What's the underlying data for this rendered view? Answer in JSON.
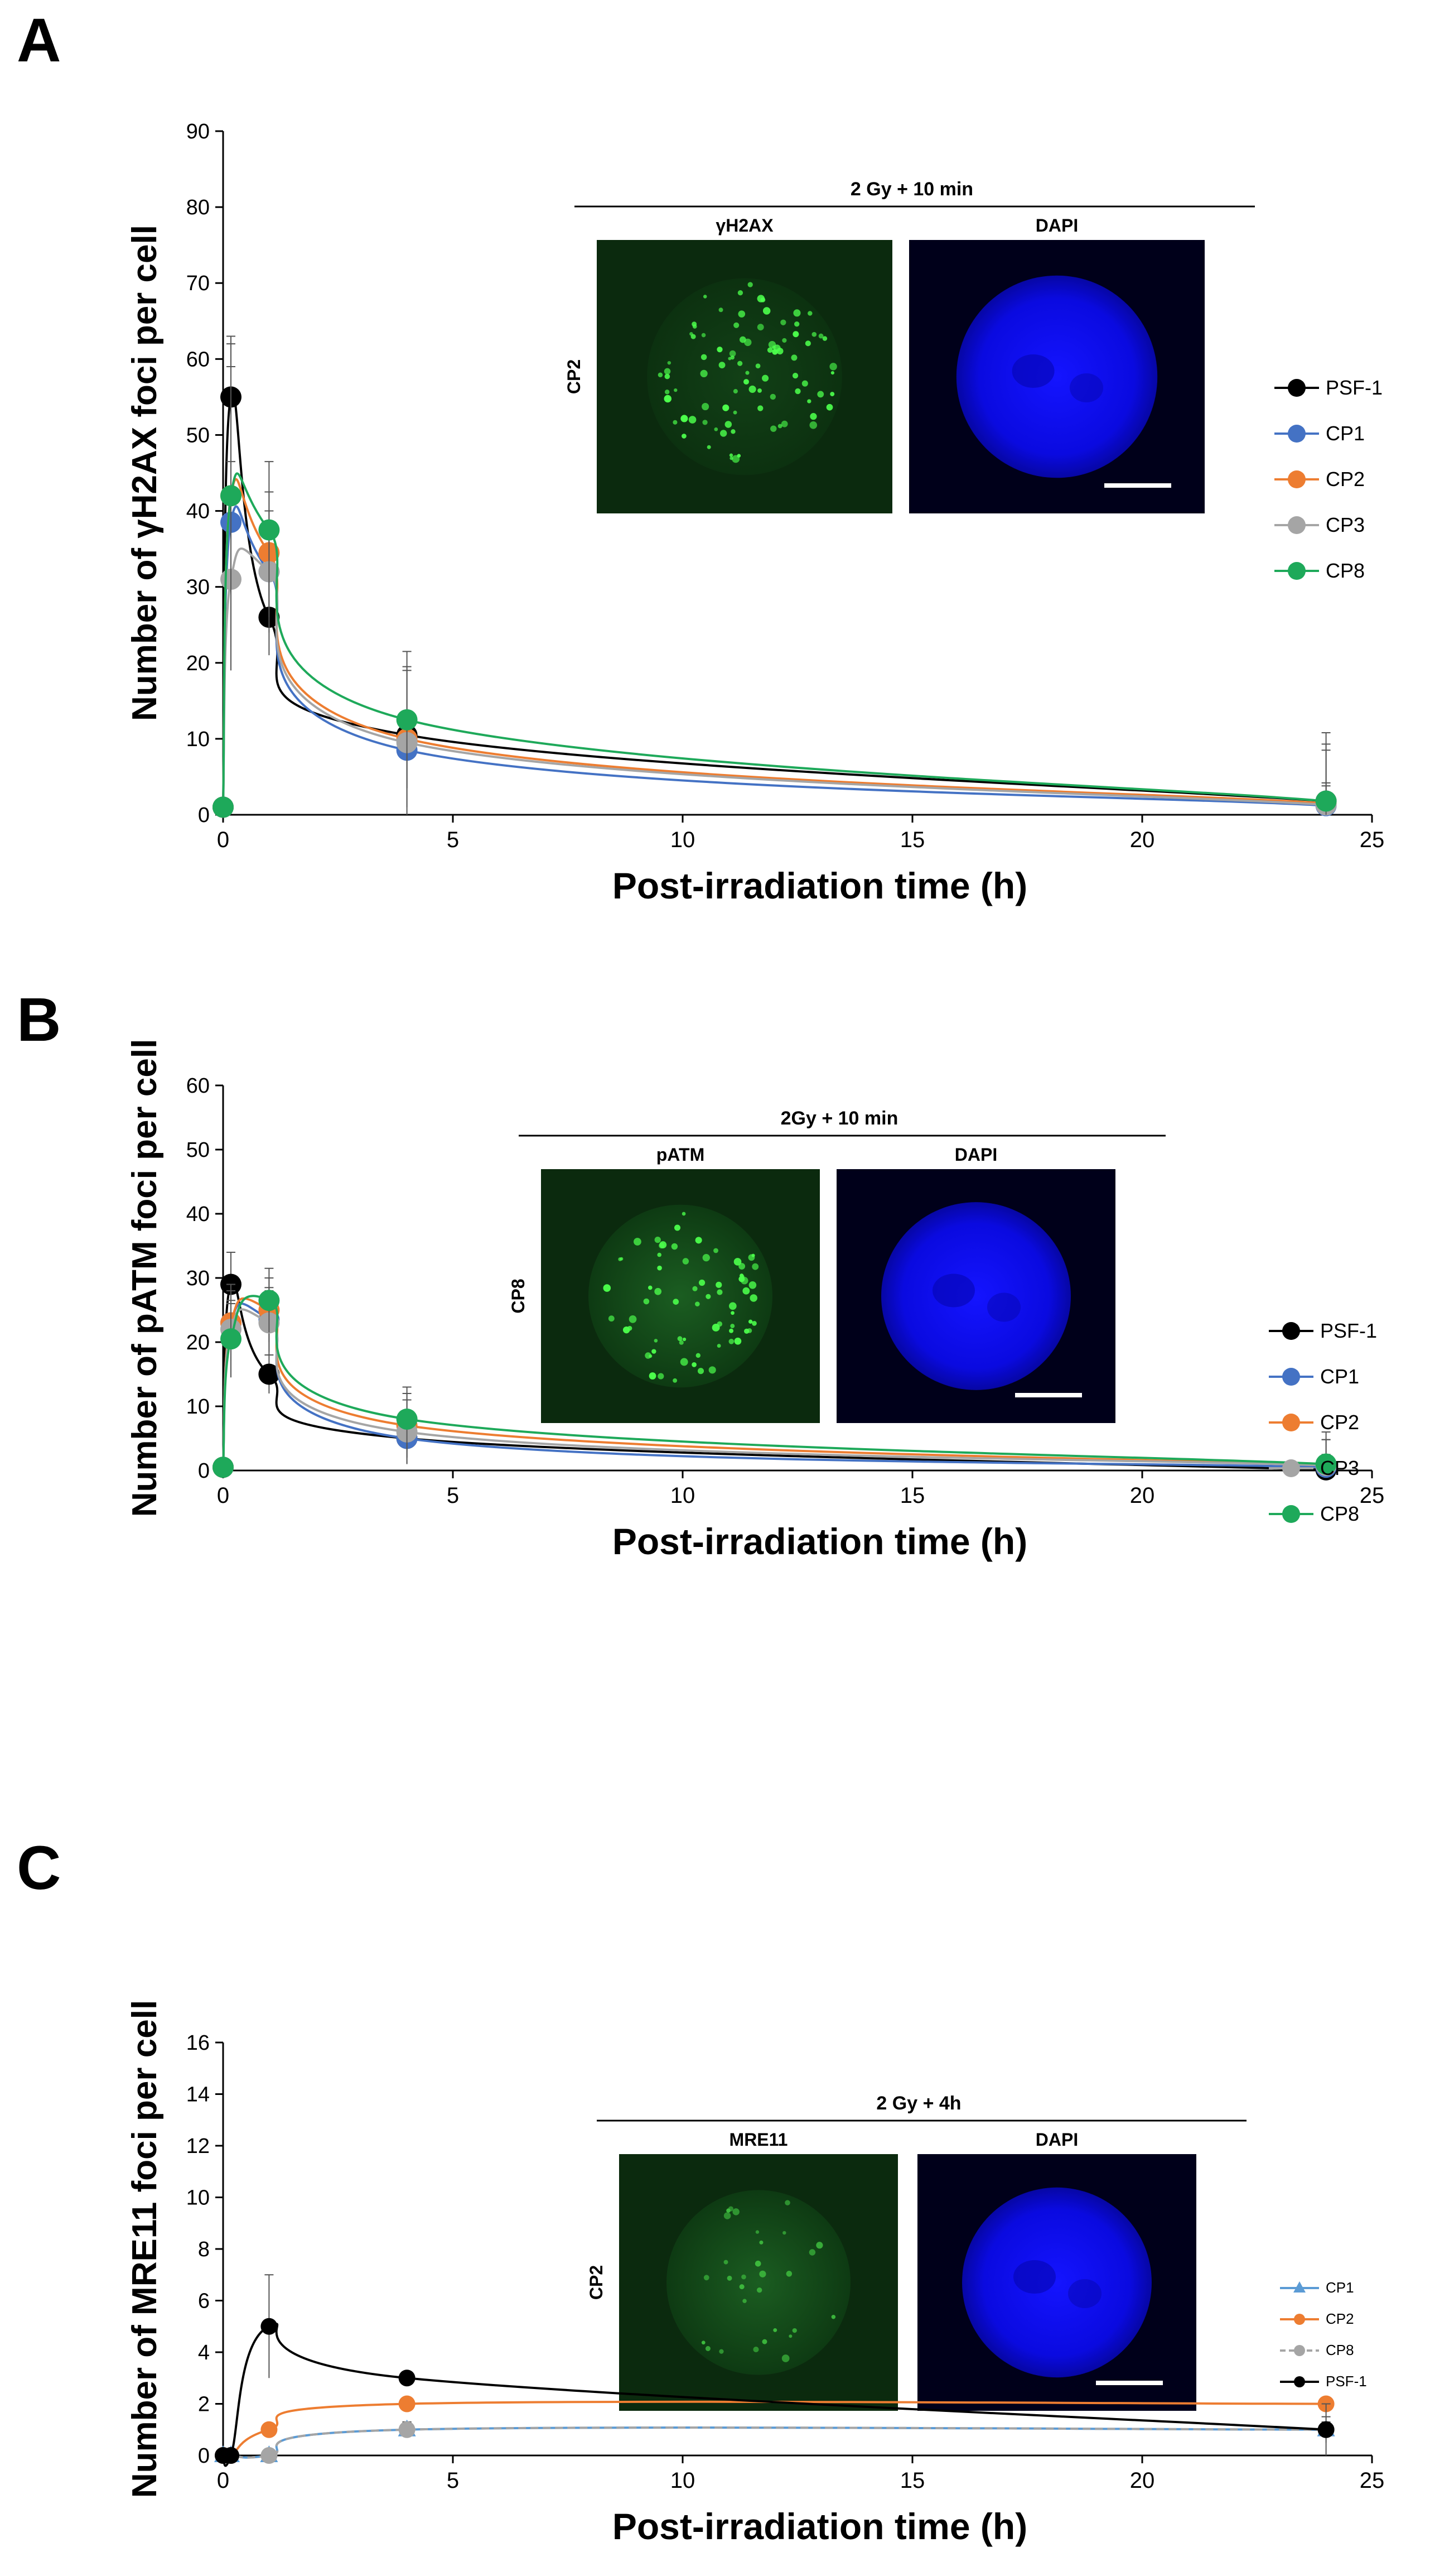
{
  "chart_data": [
    {
      "type": "line",
      "panel_label": "A",
      "xlabel": "Post-irradiation time (h)",
      "ylabel": "Number of γH2AX foci per cell",
      "xlim": [
        0,
        25
      ],
      "ylim": [
        0,
        90
      ],
      "xticks": [
        "0",
        "5",
        "10",
        "15",
        "20",
        "25"
      ],
      "yticks": [
        "0",
        "10",
        "20",
        "30",
        "40",
        "50",
        "60",
        "70",
        "80",
        "90"
      ],
      "legend_position": "right",
      "inset": {
        "condition": "2 Gy + 10 min",
        "channel_labels": [
          "γH2AX",
          "DAPI"
        ],
        "sample_label": "CP2"
      },
      "series": [
        {
          "name": "PSF-1",
          "color": "#000000",
          "x": [
            0,
            0.17,
            1,
            4,
            24
          ],
          "y": [
            1,
            55,
            26,
            10.5,
            1.8
          ],
          "err": [
            0,
            8,
            5,
            3,
            2
          ]
        },
        {
          "name": "CP1",
          "color": "#4472c4",
          "x": [
            0,
            0.17,
            1,
            4,
            24
          ],
          "y": [
            1,
            38.5,
            32,
            8.5,
            1.2
          ],
          "err": [
            0,
            8,
            6,
            5,
            3
          ]
        },
        {
          "name": "CP2",
          "color": "#ed7d31",
          "x": [
            0,
            0.17,
            1,
            4,
            24
          ],
          "y": [
            1,
            42,
            34.5,
            10,
            1.5
          ],
          "err": [
            0,
            20,
            8,
            9,
            7
          ]
        },
        {
          "name": "CP3",
          "color": "#a5a5a5",
          "x": [
            0,
            0.17,
            1,
            4,
            24
          ],
          "y": [
            1,
            31,
            32,
            9.5,
            1.3
          ],
          "err": [
            0,
            12,
            8,
            10,
            8
          ]
        },
        {
          "name": "CP8",
          "color": "#1ea95a",
          "x": [
            0,
            0.17,
            1,
            4,
            24
          ],
          "y": [
            1,
            42,
            37.5,
            12.5,
            1.8
          ],
          "err": [
            0,
            17,
            9,
            9,
            9
          ]
        }
      ]
    },
    {
      "type": "line",
      "panel_label": "B",
      "xlabel": "Post-irradiation time (h)",
      "ylabel": "Number of pATM foci per cell",
      "xlim": [
        0,
        25
      ],
      "ylim": [
        0,
        60
      ],
      "xticks": [
        "0",
        "5",
        "10",
        "15",
        "20",
        "25"
      ],
      "yticks": [
        "0",
        "10",
        "20",
        "30",
        "40",
        "50",
        "60"
      ],
      "legend_position": "right",
      "inset": {
        "condition": "2Gy + 10 min",
        "channel_labels": [
          "pATM",
          "DAPI"
        ],
        "sample_label": "CP8"
      },
      "series": [
        {
          "name": "PSF-1",
          "color": "#000000",
          "x": [
            0,
            0.17,
            1,
            4,
            24
          ],
          "y": [
            0.5,
            29,
            15,
            5,
            0.1
          ],
          "err": [
            0,
            5,
            3,
            3,
            1
          ]
        },
        {
          "name": "CP1",
          "color": "#4472c4",
          "x": [
            0,
            0.17,
            1,
            4,
            24
          ],
          "y": [
            0.5,
            23,
            23.5,
            5,
            0.5
          ],
          "err": [
            0,
            5,
            5,
            4,
            2
          ]
        },
        {
          "name": "CP2",
          "color": "#ed7d31",
          "x": [
            0,
            0.17,
            1,
            4,
            24
          ],
          "y": [
            0.5,
            23,
            25,
            7,
            0.8
          ],
          "err": [
            0,
            6,
            5,
            5,
            4
          ]
        },
        {
          "name": "CP3",
          "color": "#a5a5a5",
          "x": [
            0,
            0.17,
            1,
            4,
            24
          ],
          "y": [
            0.5,
            22,
            23,
            6,
            0.8
          ],
          "err": [
            0,
            4,
            5,
            5,
            4
          ]
        },
        {
          "name": "CP8",
          "color": "#1ea95a",
          "x": [
            0,
            0.17,
            1,
            4,
            24
          ],
          "y": [
            0.5,
            20.5,
            26.5,
            8,
            1
          ],
          "err": [
            0,
            6,
            5,
            5,
            5
          ]
        }
      ]
    },
    {
      "type": "line",
      "panel_label": "C",
      "xlabel": "Post-irradiation time (h)",
      "ylabel": "Number of MRE11 foci per cell",
      "xlim": [
        0,
        25
      ],
      "ylim": [
        0,
        16
      ],
      "xticks": [
        "0",
        "5",
        "10",
        "15",
        "20",
        "25"
      ],
      "yticks": [
        "0",
        "2",
        "4",
        "6",
        "8",
        "10",
        "12",
        "14",
        "16"
      ],
      "legend_position": "right",
      "inset": {
        "condition": "2 Gy + 4h",
        "channel_labels": [
          "MRE11",
          "DAPI"
        ],
        "sample_label": "CP2"
      },
      "series": [
        {
          "name": "CP1",
          "color": "#5b9bd5",
          "marker": "triangle",
          "x": [
            0,
            0.17,
            1,
            4,
            24
          ],
          "y": [
            0,
            0,
            0,
            1,
            1
          ],
          "err": [
            0,
            0,
            0,
            0.3,
            0.5
          ]
        },
        {
          "name": "CP2",
          "color": "#ed7d31",
          "marker": "circle",
          "x": [
            0,
            0.17,
            1,
            4,
            24
          ],
          "y": [
            0,
            0,
            1,
            2,
            2
          ],
          "err": [
            0,
            0,
            0,
            0,
            0
          ]
        },
        {
          "name": "CP8",
          "color": "#a5a5a5",
          "marker": "circle",
          "dashed": true,
          "x": [
            0,
            0.17,
            1,
            4,
            24
          ],
          "y": [
            0,
            0,
            0,
            1,
            1
          ],
          "err": [
            0,
            0,
            0,
            0.3,
            0.3
          ]
        },
        {
          "name": "PSF-1",
          "color": "#000000",
          "marker": "circle",
          "x": [
            0,
            0.17,
            1,
            4,
            24
          ],
          "y": [
            0,
            0,
            5,
            3,
            1
          ],
          "err": [
            0,
            0,
            2,
            0,
            1
          ]
        }
      ]
    }
  ]
}
